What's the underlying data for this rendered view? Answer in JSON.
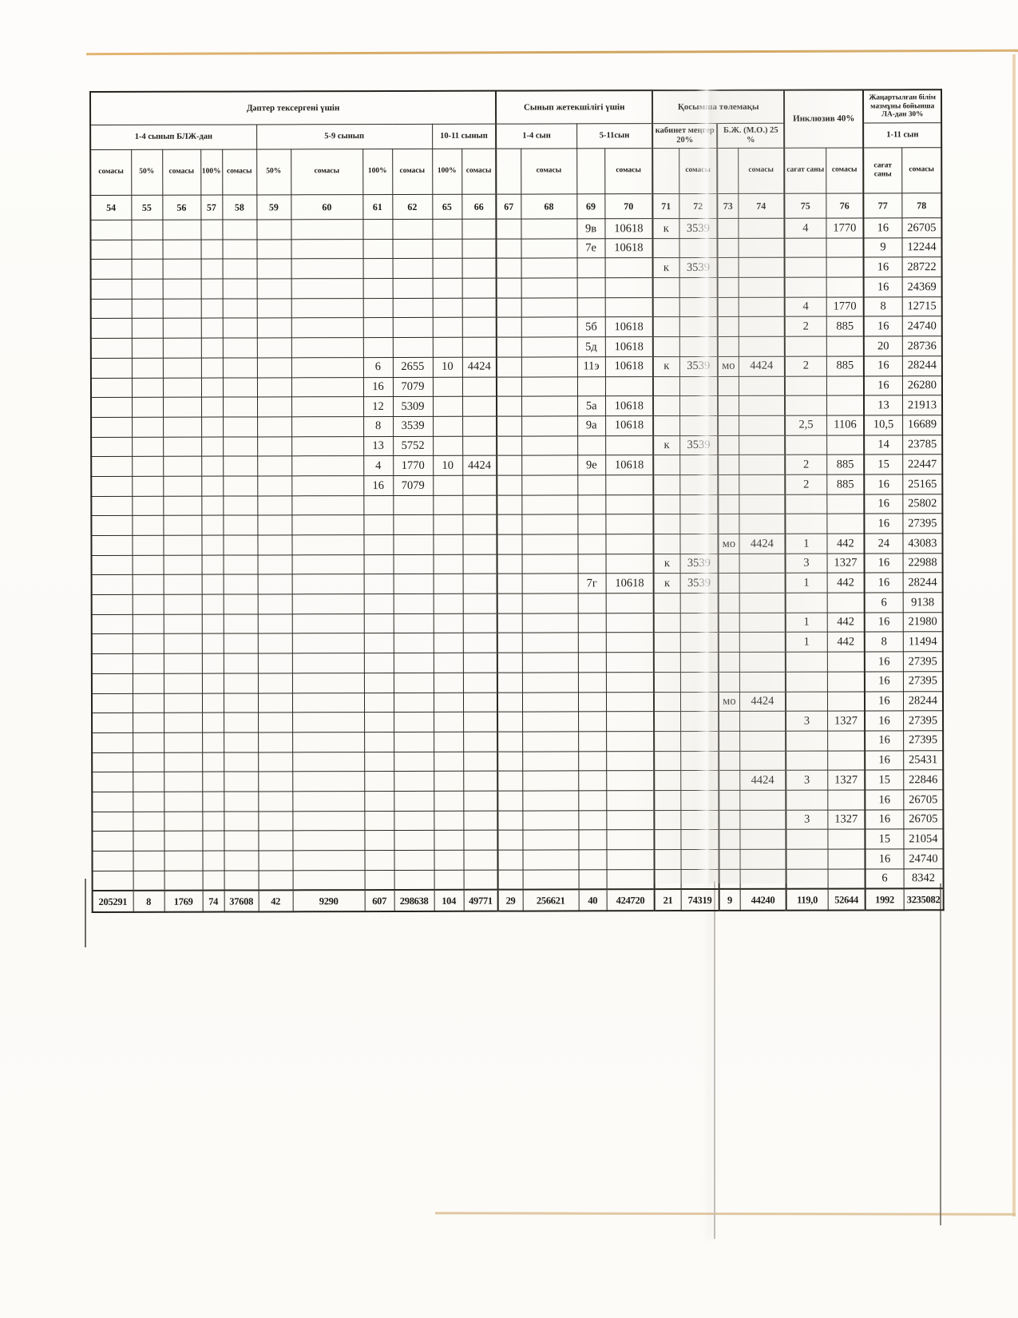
{
  "table": {
    "groups": [
      "Дәптер тексергені үшін",
      "Сынып жетекшілігі үшін",
      "Қосымша төлемақы",
      "Инклюзив  40%",
      "Жаңартылған білім мазмұны бойынша ЛА-дан 30%"
    ],
    "subgroups": [
      "1-4 сынып БЛЖ-дан",
      "5-9 сынып",
      "10-11 сынып",
      "1-4 сын",
      "5-11сын",
      "кабинет меңгер 20%",
      "Б.Ж. (М.О.) 25 %",
      "1-11 сын"
    ],
    "column_labels": [
      "сомасы",
      "50%",
      "сомасы",
      "100%",
      "сомасы",
      "50%",
      "сомасы",
      "100%",
      "сомасы",
      "100%",
      "сомасы",
      "",
      "сомасы",
      "",
      "сомасы",
      "",
      "сомасы",
      "",
      "сомасы",
      "сағат саны",
      "сомасы",
      "сағат саны",
      "сомасы"
    ],
    "column_numbers": [
      "54",
      "55",
      "56",
      "57",
      "58",
      "59",
      "60",
      "61",
      "62",
      "65",
      "66",
      "67",
      "68",
      "69",
      "70",
      "71",
      "72",
      "73",
      "74",
      "75",
      "76",
      "77",
      "78"
    ],
    "rows": [
      [
        "",
        "",
        "",
        "",
        "",
        "",
        "",
        "",
        "",
        "",
        "",
        "",
        "",
        "9в",
        "10618",
        "к",
        "3539",
        "",
        "",
        "4",
        "1770",
        "16",
        "26705"
      ],
      [
        "",
        "",
        "",
        "",
        "",
        "",
        "",
        "",
        "",
        "",
        "",
        "",
        "",
        "7е",
        "10618",
        "",
        "",
        "",
        "",
        "",
        "",
        "9",
        "12244"
      ],
      [
        "",
        "",
        "",
        "",
        "",
        "",
        "",
        "",
        "",
        "",
        "",
        "",
        "",
        "",
        "",
        "к",
        "3539",
        "",
        "",
        "",
        "",
        "16",
        "28722"
      ],
      [
        "",
        "",
        "",
        "",
        "",
        "",
        "",
        "",
        "",
        "",
        "",
        "",
        "",
        "",
        "",
        "",
        "",
        "",
        "",
        "",
        "",
        "16",
        "24369"
      ],
      [
        "",
        "",
        "",
        "",
        "",
        "",
        "",
        "",
        "",
        "",
        "",
        "",
        "",
        "",
        "",
        "",
        "",
        "",
        "",
        "4",
        "1770",
        "8",
        "12715"
      ],
      [
        "",
        "",
        "",
        "",
        "",
        "",
        "",
        "",
        "",
        "",
        "",
        "",
        "",
        "5б",
        "10618",
        "",
        "",
        "",
        "",
        "2",
        "885",
        "16",
        "24740"
      ],
      [
        "",
        "",
        "",
        "",
        "",
        "",
        "",
        "",
        "",
        "",
        "",
        "",
        "",
        "5д",
        "10618",
        "",
        "",
        "",
        "",
        "",
        "",
        "20",
        "28736"
      ],
      [
        "",
        "",
        "",
        "",
        "",
        "",
        "",
        "6",
        "2655",
        "10",
        "4424",
        "",
        "",
        "11э",
        "10618",
        "к",
        "3539",
        "мо",
        "4424",
        "2",
        "885",
        "16",
        "28244"
      ],
      [
        "",
        "",
        "",
        "",
        "",
        "",
        "",
        "16",
        "7079",
        "",
        "",
        "",
        "",
        "",
        "",
        "",
        "",
        "",
        "",
        "",
        "",
        "16",
        "26280"
      ],
      [
        "",
        "",
        "",
        "",
        "",
        "",
        "",
        "12",
        "5309",
        "",
        "",
        "",
        "",
        "5а",
        "10618",
        "",
        "",
        "",
        "",
        "",
        "",
        "13",
        "21913"
      ],
      [
        "",
        "",
        "",
        "",
        "",
        "",
        "",
        "8",
        "3539",
        "",
        "",
        "",
        "",
        "9а",
        "10618",
        "",
        "",
        "",
        "",
        "2,5",
        "1106",
        "10,5",
        "16689"
      ],
      [
        "",
        "",
        "",
        "",
        "",
        "",
        "",
        "13",
        "5752",
        "",
        "",
        "",
        "",
        "",
        "",
        "к",
        "3539",
        "",
        "",
        "",
        "",
        "14",
        "23785"
      ],
      [
        "",
        "",
        "",
        "",
        "",
        "",
        "",
        "4",
        "1770",
        "10",
        "4424",
        "",
        "",
        "9е",
        "10618",
        "",
        "",
        "",
        "",
        "2",
        "885",
        "15",
        "22447"
      ],
      [
        "",
        "",
        "",
        "",
        "",
        "",
        "",
        "16",
        "7079",
        "",
        "",
        "",
        "",
        "",
        "",
        "",
        "",
        "",
        "",
        "2",
        "885",
        "16",
        "25165"
      ],
      [
        "",
        "",
        "",
        "",
        "",
        "",
        "",
        "",
        "",
        "",
        "",
        "",
        "",
        "",
        "",
        "",
        "",
        "",
        "",
        "",
        "",
        "16",
        "25802"
      ],
      [
        "",
        "",
        "",
        "",
        "",
        "",
        "",
        "",
        "",
        "",
        "",
        "",
        "",
        "",
        "",
        "",
        "",
        "",
        "",
        "",
        "",
        "16",
        "27395"
      ],
      [
        "",
        "",
        "",
        "",
        "",
        "",
        "",
        "",
        "",
        "",
        "",
        "",
        "",
        "",
        "",
        "",
        "",
        "мо",
        "4424",
        "1",
        "442",
        "24",
        "43083"
      ],
      [
        "",
        "",
        "",
        "",
        "",
        "",
        "",
        "",
        "",
        "",
        "",
        "",
        "",
        "",
        "",
        "к",
        "3539",
        "",
        "",
        "3",
        "1327",
        "16",
        "22988"
      ],
      [
        "",
        "",
        "",
        "",
        "",
        "",
        "",
        "",
        "",
        "",
        "",
        "",
        "",
        "7г",
        "10618",
        "к",
        "3539",
        "",
        "",
        "1",
        "442",
        "16",
        "28244"
      ],
      [
        "",
        "",
        "",
        "",
        "",
        "",
        "",
        "",
        "",
        "",
        "",
        "",
        "",
        "",
        "",
        "",
        "",
        "",
        "",
        "",
        "",
        "6",
        "9138"
      ],
      [
        "",
        "",
        "",
        "",
        "",
        "",
        "",
        "",
        "",
        "",
        "",
        "",
        "",
        "",
        "",
        "",
        "",
        "",
        "",
        "1",
        "442",
        "16",
        "21980"
      ],
      [
        "",
        "",
        "",
        "",
        "",
        "",
        "",
        "",
        "",
        "",
        "",
        "",
        "",
        "",
        "",
        "",
        "",
        "",
        "",
        "1",
        "442",
        "8",
        "11494"
      ],
      [
        "",
        "",
        "",
        "",
        "",
        "",
        "",
        "",
        "",
        "",
        "",
        "",
        "",
        "",
        "",
        "",
        "",
        "",
        "",
        "",
        "",
        "16",
        "27395"
      ],
      [
        "",
        "",
        "",
        "",
        "",
        "",
        "",
        "",
        "",
        "",
        "",
        "",
        "",
        "",
        "",
        "",
        "",
        "",
        "",
        "",
        "",
        "16",
        "27395"
      ],
      [
        "",
        "",
        "",
        "",
        "",
        "",
        "",
        "",
        "",
        "",
        "",
        "",
        "",
        "",
        "",
        "",
        "",
        "мо",
        "4424",
        "",
        "",
        "16",
        "28244"
      ],
      [
        "",
        "",
        "",
        "",
        "",
        "",
        "",
        "",
        "",
        "",
        "",
        "",
        "",
        "",
        "",
        "",
        "",
        "",
        "",
        "3",
        "1327",
        "16",
        "27395"
      ],
      [
        "",
        "",
        "",
        "",
        "",
        "",
        "",
        "",
        "",
        "",
        "",
        "",
        "",
        "",
        "",
        "",
        "",
        "",
        "",
        "",
        "",
        "16",
        "27395"
      ],
      [
        "",
        "",
        "",
        "",
        "",
        "",
        "",
        "",
        "",
        "",
        "",
        "",
        "",
        "",
        "",
        "",
        "",
        "",
        "",
        "",
        "",
        "16",
        "25431"
      ],
      [
        "",
        "",
        "",
        "",
        "",
        "",
        "",
        "",
        "",
        "",
        "",
        "",
        "",
        "",
        "",
        "",
        "",
        "",
        "4424",
        "3",
        "1327",
        "15",
        "22846"
      ],
      [
        "",
        "",
        "",
        "",
        "",
        "",
        "",
        "",
        "",
        "",
        "",
        "",
        "",
        "",
        "",
        "",
        "",
        "",
        "",
        "",
        "",
        "16",
        "26705"
      ],
      [
        "",
        "",
        "",
        "",
        "",
        "",
        "",
        "",
        "",
        "",
        "",
        "",
        "",
        "",
        "",
        "",
        "",
        "",
        "",
        "3",
        "1327",
        "16",
        "26705"
      ],
      [
        "",
        "",
        "",
        "",
        "",
        "",
        "",
        "",
        "",
        "",
        "",
        "",
        "",
        "",
        "",
        "",
        "",
        "",
        "",
        "",
        "",
        "15",
        "21054"
      ],
      [
        "",
        "",
        "",
        "",
        "",
        "",
        "",
        "",
        "",
        "",
        "",
        "",
        "",
        "",
        "",
        "",
        "",
        "",
        "",
        "",
        "",
        "16",
        "24740"
      ],
      [
        "",
        "",
        "",
        "",
        "",
        "",
        "",
        "",
        "",
        "",
        "",
        "",
        "",
        "",
        "",
        "",
        "",
        "",
        "",
        "",
        "",
        "6",
        "8342"
      ]
    ],
    "totals": [
      "205291",
      "8",
      "1769",
      "74",
      "37608",
      "42",
      "9290",
      "607",
      "298638",
      "104",
      "49771",
      "29",
      "256621",
      "40",
      "424720",
      "21",
      "74319",
      "9",
      "44240",
      "119,0",
      "52644",
      "1992",
      "3235082"
    ]
  }
}
